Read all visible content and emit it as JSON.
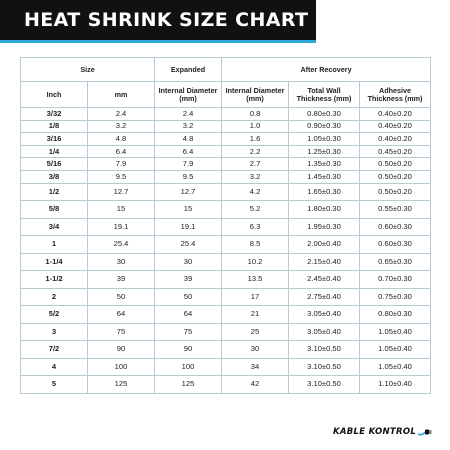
{
  "title": "HEAT SHRINK SIZE CHART",
  "brand_colors": {
    "accent": "#2fa8d8",
    "title_bg": "#111111",
    "grid": "#b8cbd3"
  },
  "table": {
    "group_headers": {
      "size": "Size",
      "expanded": "Expanded",
      "after_recovery": "After Recovery"
    },
    "column_headers": {
      "inch": "Inch",
      "mm": "mm",
      "expanded_internal": "Internal Diameter (mm)",
      "recovered_internal": "Internal Diameter (mm)",
      "wall": "Total Wall Thickness (mm)",
      "adhesive": "Adhesive Thickness (mm)"
    },
    "rows": [
      {
        "inch": "3/32",
        "mm": "2.4",
        "expanded": "2.4",
        "recovered": "0.8",
        "wall": "0.80±0.30",
        "adhesive": "0.40±0.20"
      },
      {
        "inch": "1/8",
        "mm": "3.2",
        "expanded": "3.2",
        "recovered": "1.0",
        "wall": "0.90±0.30",
        "adhesive": "0.40±0.20"
      },
      {
        "inch": "3/16",
        "mm": "4.8",
        "expanded": "4.8",
        "recovered": "1.6",
        "wall": "1.05±0.30",
        "adhesive": "0.40±0.20"
      },
      {
        "inch": "1/4",
        "mm": "6.4",
        "expanded": "6.4",
        "recovered": "2.2",
        "wall": "1.25±0.30",
        "adhesive": "0.45±0.20"
      },
      {
        "inch": "5/16",
        "mm": "7.9",
        "expanded": "7.9",
        "recovered": "2.7",
        "wall": "1.35±0.30",
        "adhesive": "0.50±0.20"
      },
      {
        "inch": "3/8",
        "mm": "9.5",
        "expanded": "9.5",
        "recovered": "3.2",
        "wall": "1.45±0.30",
        "adhesive": "0.50±0.20"
      },
      {
        "inch": "1/2",
        "mm": "12.7",
        "expanded": "12.7",
        "recovered": "4.2",
        "wall": "1.65±0.30",
        "adhesive": "0.50±0.20"
      },
      {
        "inch": "5/8",
        "mm": "15",
        "expanded": "15",
        "recovered": "5.2",
        "wall": "1.80±0.30",
        "adhesive": "0.55±0.30"
      },
      {
        "inch": "3/4",
        "mm": "19.1",
        "expanded": "19.1",
        "recovered": "6.3",
        "wall": "1.95±0.30",
        "adhesive": "0.60±0.30"
      },
      {
        "inch": "1",
        "mm": "25.4",
        "expanded": "25.4",
        "recovered": "8.5",
        "wall": "2.00±0.40",
        "adhesive": "0.60±0.30"
      },
      {
        "inch": "1-1/4",
        "mm": "30",
        "expanded": "30",
        "recovered": "10.2",
        "wall": "2.15±0.40",
        "adhesive": "0.65±0.30"
      },
      {
        "inch": "1-1/2",
        "mm": "39",
        "expanded": "39",
        "recovered": "13.5",
        "wall": "2.45±0.40",
        "adhesive": "0.70±0.30"
      },
      {
        "inch": "2",
        "mm": "50",
        "expanded": "50",
        "recovered": "17",
        "wall": "2.75±0.40",
        "adhesive": "0.75±0.30"
      },
      {
        "inch": "5/2",
        "mm": "64",
        "expanded": "64",
        "recovered": "21",
        "wall": "3.05±0.40",
        "adhesive": "0.80±0.30"
      },
      {
        "inch": "3",
        "mm": "75",
        "expanded": "75",
        "recovered": "25",
        "wall": "3.05±0.40",
        "adhesive": "1.05±0.40"
      },
      {
        "inch": "7/2",
        "mm": "90",
        "expanded": "90",
        "recovered": "30",
        "wall": "3.10±0.50",
        "adhesive": "1.05±0.40"
      },
      {
        "inch": "4",
        "mm": "100",
        "expanded": "100",
        "recovered": "34",
        "wall": "3.10±0.50",
        "adhesive": "1.05±0.40"
      },
      {
        "inch": "5",
        "mm": "125",
        "expanded": "125",
        "recovered": "42",
        "wall": "3.10±0.50",
        "adhesive": "1.10±0.40"
      }
    ]
  },
  "logo": {
    "text": "KABLE KONTROL",
    "icon": "plug-icon"
  }
}
